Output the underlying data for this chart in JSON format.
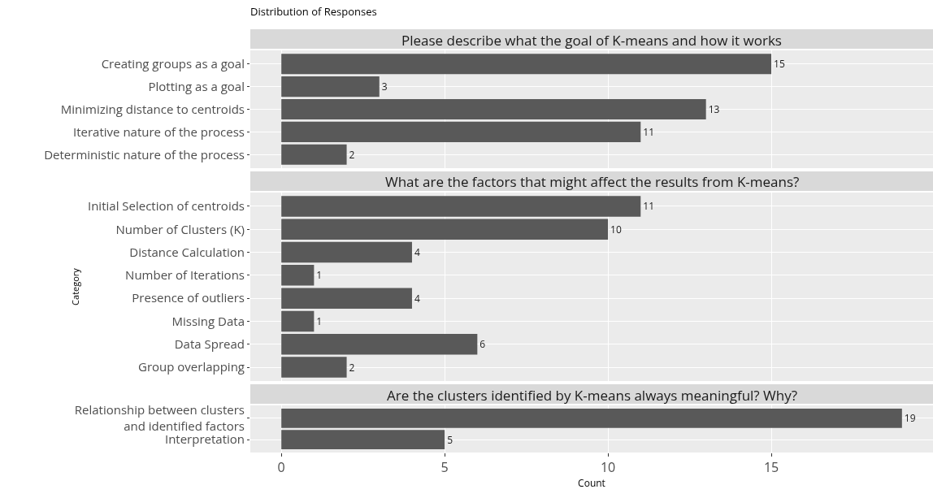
{
  "chart_data": [
    {
      "type": "bar",
      "orientation": "horizontal",
      "title": "Distribution of Responses",
      "subtitle": "Please describe what the goal of K-means and how it works",
      "categories": [
        "Creating groups as a goal",
        "Plotting as a goal",
        "Minimizing distance to centroids",
        "Iterative nature of the process",
        "Deterministic nature of the process"
      ],
      "values": [
        15,
        3,
        13,
        11,
        2
      ],
      "color": "#595959",
      "data_labels": true,
      "xlim": [
        -0.95,
        19.95
      ],
      "xticks": [
        0,
        5,
        10,
        15
      ],
      "grid": true,
      "tick_labels": "y"
    },
    {
      "type": "bar",
      "orientation": "horizontal",
      "title": "What are the factors that might affect the results from K-means?",
      "ylabel": "Category",
      "categories": [
        "Initial Selection of centroids",
        "Number of Clusters (K)",
        "Distance Calculation",
        "Number of Iterations",
        "Presence of outliers",
        "Missing Data",
        "Data Spread",
        "Group overlapping"
      ],
      "values": [
        11,
        10,
        4,
        1,
        4,
        1,
        6,
        2
      ],
      "color": "#595959",
      "data_labels": true,
      "xlim": [
        -0.95,
        19.95
      ],
      "xticks": [
        0,
        5,
        10,
        15
      ],
      "grid": true,
      "tick_labels": "y"
    },
    {
      "type": "bar",
      "orientation": "horizontal",
      "title": "Are the clusters identified by K-means always meaningful? Why?",
      "xlabel": "Count",
      "categories": [
        "Relationship between clusters\nand identified factors",
        "Interpretation"
      ],
      "values": [
        19,
        5
      ],
      "color": "#595959",
      "data_labels": true,
      "xlim": [
        -0.95,
        19.95
      ],
      "xticks": [
        0,
        5,
        10,
        15
      ],
      "grid": true
    }
  ]
}
